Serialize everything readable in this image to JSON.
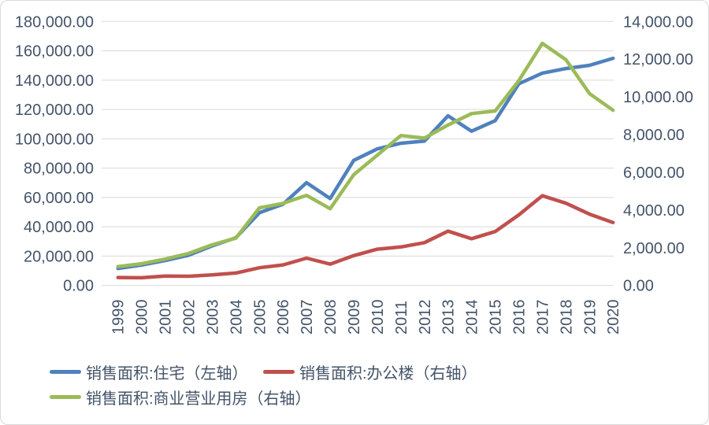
{
  "chart_data": {
    "type": "line",
    "title": "",
    "x_categories": [
      "1999",
      "2000",
      "2001",
      "2002",
      "2003",
      "2004",
      "2005",
      "2006",
      "2007",
      "2008",
      "2009",
      "2010",
      "2011",
      "2012",
      "2013",
      "2014",
      "2015",
      "2016",
      "2017",
      "2018",
      "2019",
      "2020"
    ],
    "series": [
      {
        "name": "销售面积:住宅（左轴）",
        "axis": "left",
        "color": "#4F81BD",
        "values": [
          11600,
          13900,
          17000,
          20600,
          27000,
          32500,
          49600,
          55400,
          70100,
          59300,
          85300,
          93100,
          97000,
          98500,
          115700,
          105200,
          112400,
          137500,
          144800,
          147900,
          150100,
          154900
        ]
      },
      {
        "name": "销售面积:办公楼（右轴）",
        "axis": "right",
        "color": "#C0504D",
        "values": [
          420,
          410,
          500,
          490,
          560,
          660,
          940,
          1090,
          1450,
          1130,
          1580,
          1925,
          2040,
          2270,
          2880,
          2480,
          2860,
          3740,
          4760,
          4360,
          3780,
          3340
        ]
      },
      {
        "name": "销售面积:商业营业用房（右轴）",
        "axis": "right",
        "color": "#9BBB59",
        "values": [
          1000,
          1150,
          1400,
          1700,
          2160,
          2510,
          4115,
          4355,
          4780,
          4070,
          5875,
          6910,
          7950,
          7815,
          8510,
          9115,
          9255,
          10855,
          12840,
          11970,
          10175,
          9290
        ]
      }
    ],
    "left_axis": {
      "min": 0,
      "max": 180000,
      "step": 20000,
      "tick_labels": [
        "0.00",
        "20,000.00",
        "40,000.00",
        "60,000.00",
        "80,000.00",
        "100,000.00",
        "120,000.00",
        "140,000.00",
        "160,000.00",
        "180,000.00"
      ]
    },
    "right_axis": {
      "min": 0,
      "max": 14000,
      "step": 2000,
      "tick_labels": [
        "0.00",
        "2,000.00",
        "4,000.00",
        "6,000.00",
        "8,000.00",
        "10,000.00",
        "12,000.00",
        "14,000.00"
      ]
    },
    "grid": true,
    "legend_position": "bottom"
  },
  "styles": {
    "grid_color": "#D9D9D9",
    "axis_text_color": "#44546A",
    "background": "#FFFFFF",
    "frame_border_color": "#D9D9D9"
  }
}
